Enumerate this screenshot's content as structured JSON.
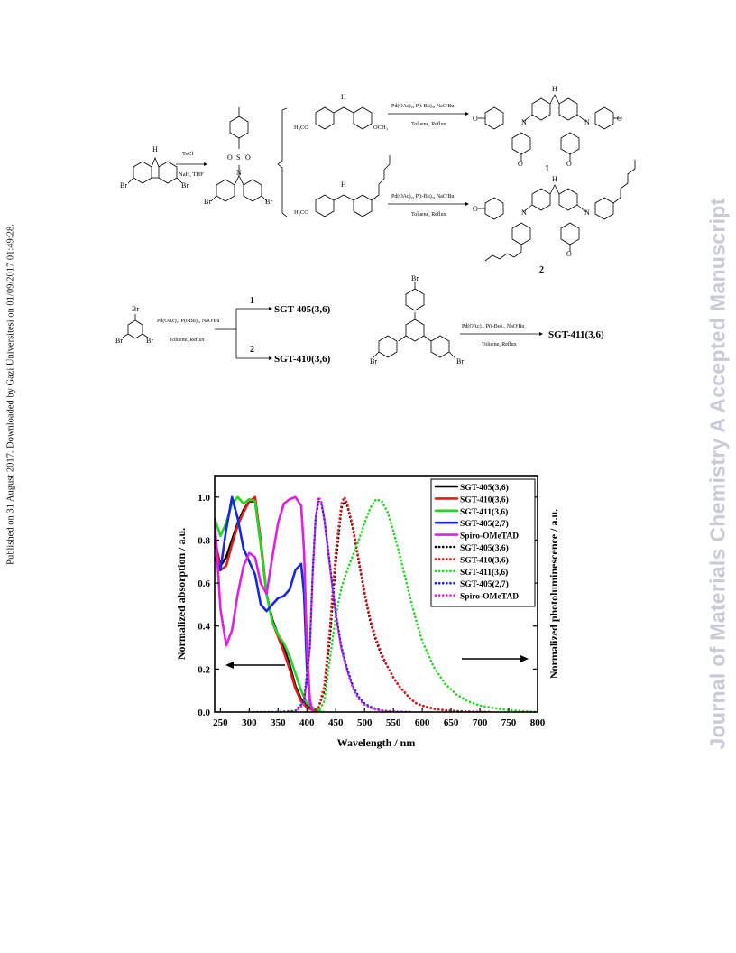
{
  "sidebar": {
    "published_note": "Published on 31 August 2017. Downloaded by Gazi Universitesi on 01/09/2017 01:49:28.",
    "journal_watermark": "Journal of Materials Chemistry A Accepted Manuscript"
  },
  "scheme": {
    "step1_reagent_top": "TsCl",
    "step1_reagent_bottom": "NaH, THF",
    "amine1_left": "H₃CO",
    "amine1_right": "OCH₃",
    "amine2_left": "H₃CO",
    "nh_label": "H",
    "n_label": "N",
    "tosyl_o": "O",
    "tosyl_s": "S",
    "br": "Br",
    "om": "O",
    "coupling_catalyst_1": "Pd(OAc)₂, P(t-Bu)₃, NaOᵗBu",
    "coupling_solvent_1": "Toluene, Reflux",
    "coupling_catalyst_2": "Pd(OAc)₂, P(t-Bu)₃, NaOᵗBu",
    "coupling_solvent_2": "Toluene, Reflux",
    "product1_label": "1",
    "product2_label": "2",
    "row2_catalyst": "Pd(OAc)₂, P(t-Bu)₃, NaOᵗBu",
    "row2_solvent": "Toluene, Reflux",
    "branch1_label": "1",
    "branch2_label": "2",
    "product_a": "SGT-405(3,6)",
    "product_b": "SGT-410(3,6)",
    "row2b_catalyst": "Pd(OAc)₂, P(t-Bu)₃, NaOᵗBu",
    "row2b_solvent": "Toluene, Reflux",
    "product_c": "SGT-411(3,6)"
  },
  "chart_data": {
    "type": "line",
    "title": "",
    "xlabel": "Wavelength / nm",
    "ylabel_left": "Normalized absorption / a.u.",
    "ylabel_right": "Normalized photoluminescence / a.u.",
    "xlim": [
      240,
      800
    ],
    "ylim": [
      0,
      1.1
    ],
    "x_ticks": [
      250,
      300,
      350,
      400,
      450,
      500,
      550,
      600,
      650,
      700,
      750,
      800
    ],
    "y_ticks": [
      0.0,
      0.2,
      0.4,
      0.6,
      0.8,
      1.0
    ],
    "legend_position": "top-right",
    "series": [
      {
        "name": "SGT-405(3,6)",
        "kind": "absorption",
        "color": "#000000",
        "x": [
          240,
          250,
          260,
          270,
          280,
          290,
          300,
          310,
          320,
          330,
          340,
          350,
          360,
          370,
          380,
          390,
          400,
          410,
          420
        ],
        "y": [
          0.8,
          0.68,
          0.72,
          0.8,
          0.88,
          0.94,
          0.98,
          0.98,
          0.78,
          0.55,
          0.43,
          0.36,
          0.3,
          0.22,
          0.12,
          0.06,
          0.03,
          0.01,
          0
        ]
      },
      {
        "name": "SGT-410(3,6)",
        "kind": "absorption",
        "color": "#e31a1c",
        "x": [
          240,
          250,
          260,
          270,
          280,
          290,
          300,
          310,
          320,
          330,
          340,
          350,
          360,
          370,
          380,
          390,
          400,
          410,
          420
        ],
        "y": [
          0.82,
          0.66,
          0.68,
          0.78,
          0.87,
          0.93,
          0.98,
          1.0,
          0.8,
          0.55,
          0.42,
          0.35,
          0.28,
          0.2,
          0.11,
          0.05,
          0.02,
          0.01,
          0
        ]
      },
      {
        "name": "SGT-411(3,6)",
        "kind": "absorption",
        "color": "#22d622",
        "x": [
          240,
          250,
          260,
          270,
          280,
          290,
          300,
          310,
          320,
          330,
          340,
          350,
          360,
          370,
          380,
          390,
          400,
          410,
          420,
          425,
          430
        ],
        "y": [
          0.9,
          0.82,
          0.88,
          0.97,
          1.0,
          0.97,
          0.99,
          0.98,
          0.78,
          0.55,
          0.42,
          0.36,
          0.32,
          0.26,
          0.18,
          0.1,
          0.04,
          0.02,
          0.01,
          0.0,
          0
        ]
      },
      {
        "name": "SGT-405(2,7)",
        "kind": "absorption",
        "color": "#1428e0",
        "x": [
          240,
          250,
          260,
          270,
          280,
          290,
          300,
          310,
          320,
          330,
          340,
          350,
          360,
          370,
          380,
          390,
          395,
          400,
          405,
          410
        ],
        "y": [
          0.72,
          0.66,
          0.85,
          1.0,
          0.9,
          0.76,
          0.7,
          0.64,
          0.5,
          0.47,
          0.5,
          0.53,
          0.54,
          0.57,
          0.66,
          0.69,
          0.55,
          0.2,
          0.05,
          0
        ]
      },
      {
        "name": "Spiro-OMeTAD",
        "kind": "absorption",
        "color": "#e020e0",
        "x": [
          240,
          250,
          260,
          270,
          280,
          290,
          300,
          310,
          320,
          330,
          340,
          350,
          360,
          370,
          380,
          390,
          395,
          400,
          405,
          410
        ],
        "y": [
          0.9,
          0.48,
          0.31,
          0.38,
          0.55,
          0.68,
          0.74,
          0.72,
          0.6,
          0.55,
          0.72,
          0.88,
          0.97,
          0.99,
          1.0,
          0.96,
          0.75,
          0.3,
          0.06,
          0
        ]
      },
      {
        "name": "SGT-405(3,6)",
        "kind": "photoluminescence",
        "color": "#000000",
        "x": [
          410,
          420,
          430,
          440,
          450,
          460,
          465,
          470,
          480,
          490,
          500,
          510,
          520,
          530,
          540,
          550,
          560,
          570,
          580,
          590,
          600,
          620,
          640,
          660,
          680,
          700,
          720
        ],
        "y": [
          0,
          0.02,
          0.1,
          0.35,
          0.7,
          0.95,
          0.98,
          0.96,
          0.85,
          0.7,
          0.55,
          0.42,
          0.33,
          0.26,
          0.21,
          0.16,
          0.12,
          0.09,
          0.06,
          0.04,
          0.03,
          0.015,
          0.008,
          0.004,
          0.002,
          0.001,
          0
        ]
      },
      {
        "name": "SGT-410(3,6)",
        "kind": "photoluminescence",
        "color": "#e31a1c",
        "x": [
          410,
          420,
          430,
          440,
          450,
          460,
          465,
          470,
          480,
          490,
          500,
          510,
          520,
          530,
          540,
          550,
          560,
          570,
          580,
          590,
          600,
          620,
          640,
          660,
          680,
          700,
          720
        ],
        "y": [
          0,
          0.02,
          0.12,
          0.4,
          0.75,
          0.97,
          1.0,
          0.97,
          0.86,
          0.71,
          0.56,
          0.43,
          0.34,
          0.27,
          0.21,
          0.16,
          0.12,
          0.09,
          0.06,
          0.04,
          0.03,
          0.015,
          0.008,
          0.004,
          0.002,
          0.001,
          0
        ]
      },
      {
        "name": "SGT-411(3,6)",
        "kind": "photoluminescence",
        "color": "#22d622",
        "x": [
          420,
          430,
          440,
          450,
          460,
          470,
          480,
          490,
          500,
          510,
          520,
          530,
          540,
          550,
          560,
          570,
          580,
          590,
          600,
          620,
          640,
          660,
          680,
          700,
          720,
          740,
          760,
          780,
          800
        ],
        "y": [
          0,
          0.05,
          0.25,
          0.45,
          0.58,
          0.66,
          0.73,
          0.8,
          0.88,
          0.95,
          0.99,
          0.98,
          0.93,
          0.84,
          0.74,
          0.63,
          0.52,
          0.42,
          0.33,
          0.21,
          0.13,
          0.08,
          0.05,
          0.03,
          0.02,
          0.012,
          0.007,
          0.003,
          0
        ]
      },
      {
        "name": "SGT-405(2,7)",
        "kind": "photoluminescence",
        "color": "#1428e0",
        "x": [
          300,
          350,
          380,
          395,
          405,
          410,
          415,
          420,
          425,
          430,
          440,
          450,
          460,
          470,
          480,
          490,
          500,
          510,
          520,
          530,
          540,
          560,
          580
        ],
        "y": [
          0,
          0,
          0.005,
          0.05,
          0.3,
          0.65,
          0.9,
          0.98,
          0.97,
          0.9,
          0.68,
          0.46,
          0.3,
          0.2,
          0.12,
          0.07,
          0.04,
          0.025,
          0.015,
          0.008,
          0.004,
          0.001,
          0
        ]
      },
      {
        "name": "Spiro-OMeTAD",
        "kind": "photoluminescence",
        "color": "#e020e0",
        "x": [
          380,
          395,
          405,
          410,
          415,
          420,
          425,
          430,
          440,
          450,
          460,
          470,
          480,
          490,
          500,
          510,
          520,
          530,
          540,
          560,
          580
        ],
        "y": [
          0,
          0.04,
          0.3,
          0.65,
          0.9,
          1.0,
          0.98,
          0.9,
          0.67,
          0.45,
          0.29,
          0.19,
          0.11,
          0.06,
          0.035,
          0.02,
          0.012,
          0.006,
          0.003,
          0.001,
          0
        ]
      }
    ]
  }
}
